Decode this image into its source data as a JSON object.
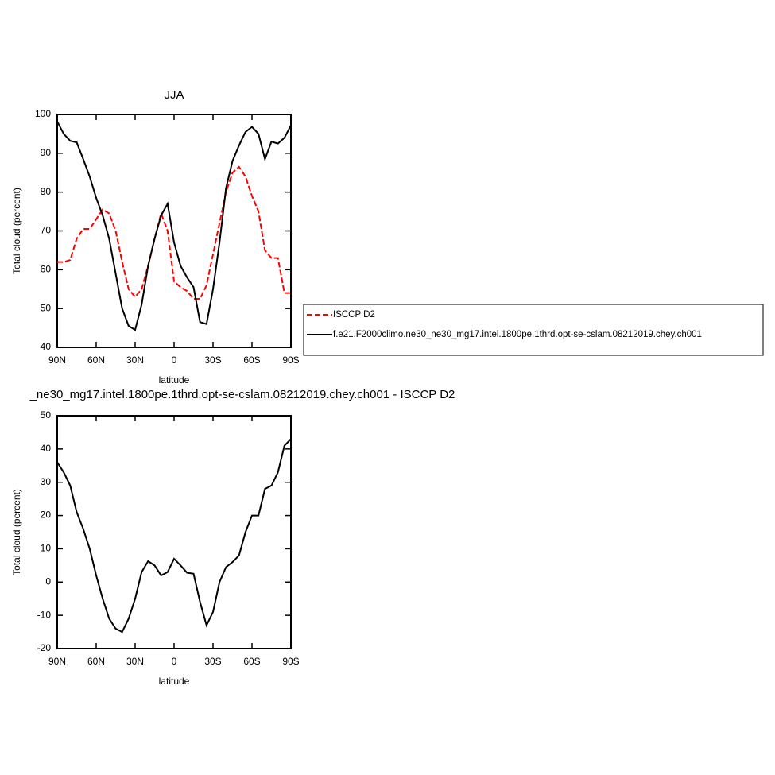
{
  "chart_data": [
    {
      "type": "line",
      "title": "JJA",
      "xlabel": "latitude",
      "ylabel": "Total cloud (percent)",
      "x": [
        90,
        85,
        80,
        75,
        70,
        65,
        60,
        55,
        50,
        45,
        40,
        35,
        30,
        25,
        20,
        15,
        10,
        5,
        0,
        -5,
        -10,
        -15,
        -20,
        -25,
        -30,
        -35,
        -40,
        -45,
        -50,
        -55,
        -60,
        -65,
        -70,
        -75,
        -80,
        -85,
        -90
      ],
      "series": [
        {
          "name": "ISCCP D2",
          "color": "#ff0000",
          "dash": true,
          "values": [
            62,
            62,
            62.5,
            68,
            70.5,
            70.5,
            73,
            75.5,
            74.5,
            70,
            62,
            55,
            53,
            55,
            61,
            68,
            74.5,
            70,
            57,
            55.5,
            54.5,
            52.5,
            52.5,
            56,
            64,
            72,
            80,
            85,
            86.5,
            84,
            79,
            75,
            65,
            63,
            63,
            54,
            54
          ]
        },
        {
          "name": "f.e21.F2000climo.ne30_ne30_mg17.intel.1800pe.1thrd.opt-se-cslam.08212019.chey.ch001",
          "color": "#000000",
          "dash": false,
          "values": [
            98.2,
            95,
            93.2,
            92.8,
            88.5,
            84,
            78.5,
            74,
            68,
            59,
            50,
            45.5,
            44.5,
            51,
            61,
            68,
            74,
            77,
            67,
            61,
            58,
            55.5,
            46.5,
            46,
            55,
            67,
            81,
            88,
            92,
            95.5,
            96.8,
            95,
            88.5,
            93,
            92.5,
            94,
            97.2
          ]
        }
      ],
      "xlim": [
        90,
        -90
      ],
      "xticks": [
        {
          "value": 90,
          "label": "90N"
        },
        {
          "value": 60,
          "label": "60N"
        },
        {
          "value": 30,
          "label": "30N"
        },
        0,
        {
          "value": -30,
          "label": "30S"
        },
        {
          "value": -60,
          "label": "60S"
        },
        {
          "value": -90,
          "label": "90S"
        }
      ],
      "ylim": [
        40,
        100
      ],
      "yticks": [
        40,
        50,
        60,
        70,
        80,
        90,
        100
      ]
    },
    {
      "type": "line",
      "title": "_ne30_mg17.intel.1800pe.1thrd.opt-se-cslam.08212019.chey.ch001 - ISCCP D2",
      "xlabel": "latitude",
      "ylabel": "Total cloud (percent)",
      "x": [
        90,
        85,
        80,
        75,
        70,
        65,
        60,
        55,
        50,
        45,
        40,
        35,
        30,
        25,
        20,
        15,
        10,
        5,
        0,
        -5,
        -10,
        -15,
        -20,
        -25,
        -30,
        -35,
        -40,
        -45,
        -50,
        -55,
        -60,
        -65,
        -70,
        -75,
        -80,
        -85,
        -90
      ],
      "values": [
        36,
        33,
        29,
        21,
        16,
        10,
        2,
        -5,
        -11,
        -14,
        -15,
        -11,
        -5,
        3,
        6.3,
        5,
        2,
        3,
        7,
        5,
        2.8,
        2.5,
        -6,
        -13,
        -9,
        0,
        4.5,
        6,
        8,
        15,
        20,
        20,
        28,
        29,
        33,
        41,
        43
      ],
      "color": "#000000",
      "xlim": [
        90,
        -90
      ],
      "xticks": [
        {
          "value": 90,
          "label": "90N"
        },
        {
          "value": 60,
          "label": "60N"
        },
        {
          "value": 30,
          "label": "30N"
        },
        0,
        {
          "value": -30,
          "label": "30S"
        },
        {
          "value": -60,
          "label": "60S"
        },
        {
          "value": -90,
          "label": "90S"
        }
      ],
      "ylim": [
        -20,
        50
      ],
      "yticks": [
        -20,
        -10,
        0,
        10,
        20,
        30,
        40,
        50
      ]
    }
  ]
}
